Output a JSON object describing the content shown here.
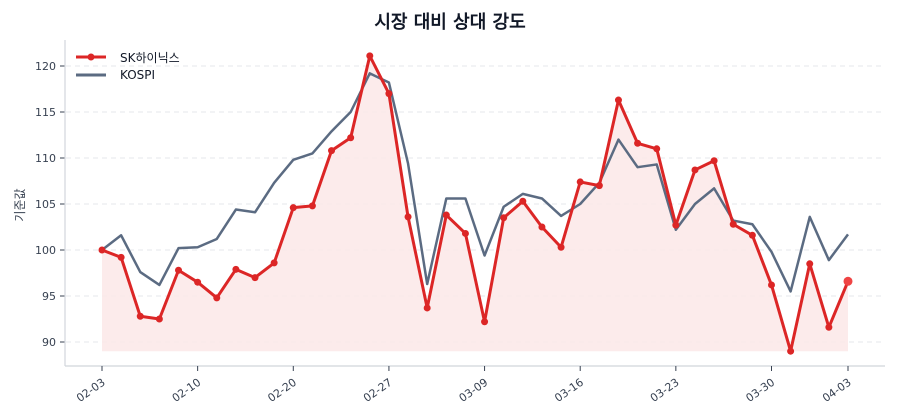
{
  "chart_data": {
    "type": "line",
    "title": "시장 대비 상대 강도",
    "xlabel": "",
    "ylabel": "기준값",
    "ylim": [
      87.5,
      122.5
    ],
    "yticks": [
      90,
      95,
      100,
      105,
      110,
      115,
      120
    ],
    "xtick_labels": [
      "02-03",
      "02-10",
      "02-20",
      "02-27",
      "03-09",
      "03-16",
      "03-23",
      "03-30",
      "04-03"
    ],
    "xtick_indices": [
      0,
      5,
      10,
      15,
      20,
      25,
      30,
      35,
      39
    ],
    "grid": "horizontal dashed",
    "legend_position": "upper left",
    "baseline_fill": 89.0,
    "series": [
      {
        "name": "SK하이닉스",
        "color": "#dc2626",
        "marker": "circle",
        "fill": "#fce8e8",
        "values": [
          100.0,
          99.2,
          92.8,
          92.5,
          97.8,
          96.5,
          94.8,
          97.9,
          97.0,
          98.6,
          104.6,
          104.8,
          110.8,
          112.2,
          121.1,
          117.0,
          103.6,
          93.7,
          103.8,
          101.8,
          92.2,
          103.5,
          105.3,
          102.5,
          100.3,
          107.4,
          107.0,
          116.3,
          111.6,
          111.0,
          102.7,
          108.7,
          109.7,
          102.8,
          101.6,
          96.2,
          89.0,
          98.5,
          91.6,
          96.6
        ]
      },
      {
        "name": "KOSPI",
        "color": "#5b6b82",
        "marker": "none",
        "values": [
          100.0,
          101.6,
          97.6,
          96.2,
          100.2,
          100.3,
          101.2,
          104.4,
          104.1,
          107.3,
          109.8,
          110.5,
          112.9,
          115.0,
          119.2,
          118.2,
          109.4,
          96.3,
          105.6,
          105.6,
          99.4,
          104.7,
          106.1,
          105.6,
          103.7,
          105.0,
          107.3,
          112.0,
          109.0,
          109.3,
          102.2,
          105.0,
          106.7,
          103.2,
          102.8,
          99.8,
          95.5,
          103.6,
          98.9,
          101.7
        ]
      }
    ]
  }
}
